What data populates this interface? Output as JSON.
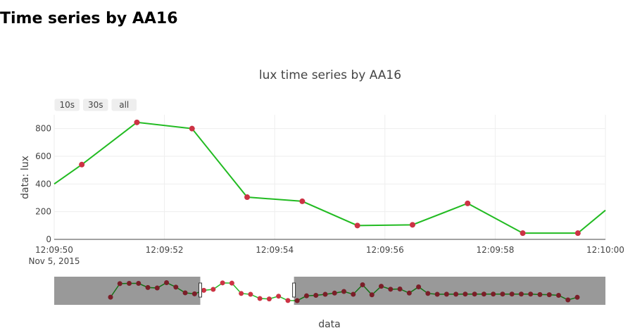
{
  "page_title": "Time series by AA16",
  "chart_data": {
    "type": "line",
    "title": "lux time series by AA16",
    "xlabel": "data",
    "ylabel": "data: lux",
    "ylim": [
      0,
      900
    ],
    "xlim": [
      "12:09:50",
      "12:10:00"
    ],
    "x_ticks": [
      "12:09:50",
      "12:09:52",
      "12:09:54",
      "12:09:56",
      "12:09:58",
      "12:10:00"
    ],
    "x_tick_date": "Nov 5, 2015",
    "y_ticks": [
      0,
      200,
      400,
      600,
      800
    ],
    "grid": true,
    "line_color": "#22bb22",
    "marker_color": "#cc3344",
    "x": [
      "12:09:50.5",
      "12:09:51.5",
      "12:09:52.5",
      "12:09:53.5",
      "12:09:54.5",
      "12:09:55.5",
      "12:09:56.5",
      "12:09:57.5",
      "12:09:58.5",
      "12:09:59.5"
    ],
    "values": [
      540,
      845,
      800,
      305,
      275,
      100,
      105,
      260,
      45,
      45
    ],
    "y_at_left_edge": 400,
    "y_at_right_edge": 210,
    "range_buttons": [
      "10s",
      "30s",
      "all"
    ],
    "rangeslider": {
      "visible": true,
      "overview_values": [
        195,
        740,
        750,
        750,
        585,
        565,
        780,
        600,
        370,
        330,
        470,
        510,
        770,
        760,
        345,
        310,
        140,
        125,
        235,
        60,
        55,
        250,
        270,
        310,
        360,
        425,
        310,
        695,
        290,
        635,
        515,
        525,
        360,
        610,
        345,
        310,
        315,
        315,
        320,
        320,
        320,
        320,
        320,
        320,
        320,
        320,
        300,
        295,
        270,
        85,
        190
      ],
      "window_fraction": [
        0.265,
        0.435
      ]
    }
  }
}
